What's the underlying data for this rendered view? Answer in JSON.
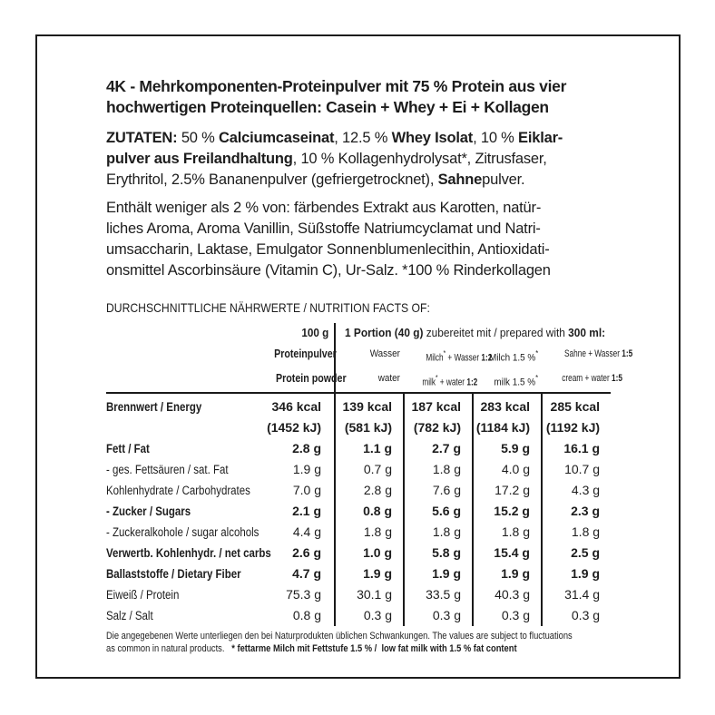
{
  "title": {
    "line1": "4K - Mehrkomponenten-Proteinpulver mit 75 % Protein aus vier",
    "line2": "hochwertigen Proteinquellen: Casein + Whey + Ei + Kollagen"
  },
  "ingredients": {
    "zutaten_label": "ZUTATEN:",
    "seg_after_label": " 50 % ",
    "bold_casein": "Calciumcaseinat",
    "seg2": ", 12.5 % ",
    "bold_whey": "Whey Isolat",
    "seg3": ", 10 % ",
    "bold_eiklar_hyphen": "Eiklar-",
    "bold_eiklar_rest": "pulver aus Freilandhaltung",
    "seg4": ", 10 % Kollagenhydrolysat*, Zitrusfaser,",
    "seg5": "Erythritol, 2.5% Bananenpulver (gefriergetrocknet), ",
    "bold_sahne": "Sahne",
    "seg6": "pulver."
  },
  "contains": {
    "line1": "Enthält weniger als 2 % von: färbendes Extrakt aus Karotten, natür-",
    "line2": "liches Aroma, Aroma Vanillin, Süßstoffe Natriumcyclamat und Natri-",
    "line3": "umsaccharin, Laktase, Emulgator Sonnenblumenlecithin, Antioxidati-",
    "line4": "onsmittel Ascorbinsäure (Vitamin C), Ur-Salz. *100 % Rinderkollagen"
  },
  "table": {
    "heading": "DURCHSCHNITTLICHE NÄHRWERTE / NUTRITION FACTS OF:",
    "col_100g": {
      "l1": "100 g",
      "l2": "Proteinpulver",
      "l3": "Protein powder"
    },
    "portion": {
      "b1": "1 Portion (40 g)",
      "mid": " zubereitet mit / prepared with ",
      "b2": "300 ml:"
    },
    "cols": {
      "water": {
        "de": "Wasser",
        "en": "water"
      },
      "milk_water": {
        "de_a": "Milch",
        "sup": "*",
        "de_b": " + Wasser ",
        "en_a": "milk",
        "en_b": " + water ",
        "ratio": "1:2"
      },
      "milk15": {
        "de_a": "Milch 1.5 %",
        "sup": "*",
        "en_a": "milk 1.5 %"
      },
      "cream_water": {
        "de_a": "Sahne + Wasser ",
        "en_a": "cream + water ",
        "ratio": "1:5"
      }
    },
    "rows": [
      {
        "label": "Brennwert / Energy",
        "bold": true,
        "v": [
          "346 kcal",
          "139 kcal",
          "187 kcal",
          "283 kcal",
          "285 kcal"
        ],
        "kj": [
          "(1452 kJ)",
          "(581 kJ)",
          "(782 kJ)",
          "(1184 kJ)",
          "(1192 kJ)"
        ]
      },
      {
        "label": "Fett / Fat",
        "bold": true,
        "v": [
          "2.8 g",
          "1.1 g",
          "2.7 g",
          "5.9 g",
          "16.1 g"
        ]
      },
      {
        "label": "- ges. Fettsäuren / sat. Fat",
        "bold": false,
        "v": [
          "1.9 g",
          "0.7 g",
          "1.8 g",
          "4.0 g",
          "10.7 g"
        ]
      },
      {
        "label": "Kohlenhydrate / Carbohydrates",
        "bold": false,
        "v": [
          "7.0 g",
          "2.8 g",
          "7.6 g",
          "17.2 g",
          "4.3 g"
        ]
      },
      {
        "label": "- Zucker / Sugars",
        "bold": true,
        "v": [
          "2.1 g",
          "0.8 g",
          "5.6 g",
          "15.2 g",
          "2.3 g"
        ]
      },
      {
        "label": "- Zuckeralkohole / sugar alcohols",
        "bold": false,
        "v": [
          "4.4 g",
          "1.8 g",
          "1.8 g",
          "1.8 g",
          "1.8 g"
        ]
      },
      {
        "label": "Verwertb. Kohlenhydr. / net carbs",
        "bold": true,
        "v": [
          "2.6 g",
          "1.0 g",
          "5.8 g",
          "15.4 g",
          "2.5 g"
        ]
      },
      {
        "label": "Ballaststoffe / Dietary Fiber",
        "bold": true,
        "v": [
          "4.7 g",
          "1.9 g",
          "1.9 g",
          "1.9 g",
          "1.9 g"
        ]
      },
      {
        "label": "Eiweiß / Protein",
        "bold": false,
        "v": [
          "75.3 g",
          "30.1 g",
          "33.5 g",
          "40.3 g",
          "31.4 g"
        ]
      },
      {
        "label": "Salz / Salt",
        "bold": false,
        "v": [
          "0.8 g",
          "0.3 g",
          "0.3 g",
          "0.3 g",
          "0.3 g"
        ]
      }
    ]
  },
  "footnote": {
    "line1": "Die angegebenen Werte unterliegen den bei Naturprodukten üblichen Schwankungen. The values are subject to fluctuations",
    "line2_regular": "as common in natural products.   ",
    "line2_bold": "* fettarme Milch mit Fettstufe 1.5 % /  low fat milk with 1.5 % fat content"
  }
}
